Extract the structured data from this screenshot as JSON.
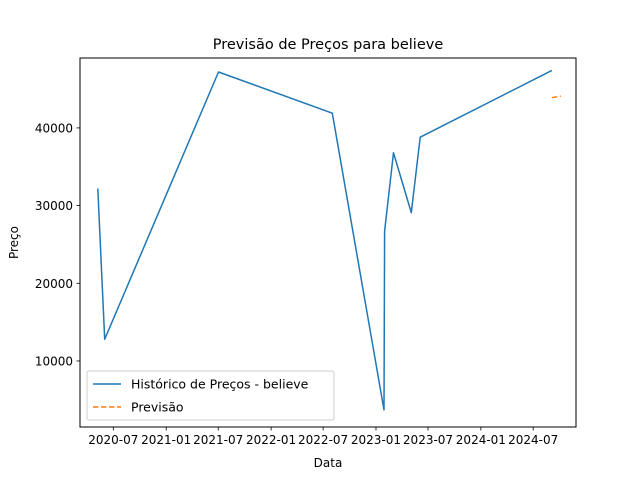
{
  "chart_data": {
    "type": "line",
    "title": "Previsão de Preços para believe",
    "xlabel": "Data",
    "ylabel": "Preço",
    "xlim": [
      "2020-03-07",
      "2024-11-27"
    ],
    "ylim": [
      1500,
      49000
    ],
    "x_ticks": [
      "2020-07",
      "2021-01",
      "2021-07",
      "2022-01",
      "2022-07",
      "2023-01",
      "2023-07",
      "2024-01",
      "2024-07"
    ],
    "y_ticks": [
      10000,
      20000,
      30000,
      40000
    ],
    "grid": false,
    "legend_position": "lower-left",
    "series": [
      {
        "name": "Histórico de Preços - believe",
        "color": "#1f77b4",
        "style": "solid",
        "points": [
          {
            "x": "2020-05-08",
            "y": 32200
          },
          {
            "x": "2020-06-01",
            "y": 12800
          },
          {
            "x": "2021-07-02",
            "y": 47200
          },
          {
            "x": "2022-08-02",
            "y": 41900
          },
          {
            "x": "2023-01-29",
            "y": 3700
          },
          {
            "x": "2023-01-31",
            "y": 26700
          },
          {
            "x": "2023-03-03",
            "y": 36800
          },
          {
            "x": "2023-05-04",
            "y": 29100
          },
          {
            "x": "2023-06-04",
            "y": 38800
          },
          {
            "x": "2024-09-04",
            "y": 47400
          }
        ]
      },
      {
        "name": "Previsão",
        "color": "#ff7f0e",
        "style": "dashed",
        "points": [
          {
            "x": "2024-09-04",
            "y": 43900
          },
          {
            "x": "2024-10-05",
            "y": 44100
          }
        ]
      }
    ]
  }
}
